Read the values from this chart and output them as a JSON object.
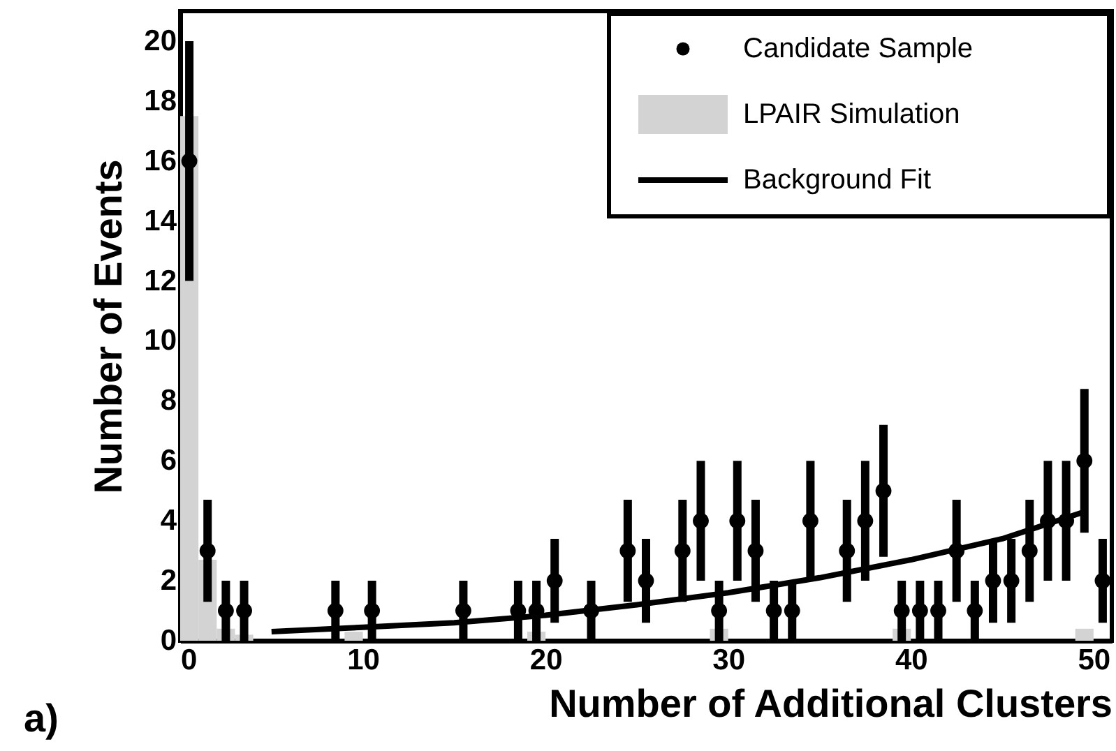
{
  "chart_data": {
    "type": "scatter",
    "xlabel": "Number of Additional Clusters",
    "ylabel": "Number of Events",
    "annotations": [
      "a)"
    ],
    "xlim": [
      0,
      51
    ],
    "xticks": [
      0,
      10,
      20,
      30,
      40,
      50
    ],
    "ylim": [
      0,
      21
    ],
    "yticks": [
      0,
      2,
      4,
      6,
      8,
      10,
      12,
      14,
      16,
      18,
      20
    ],
    "grid": false,
    "legend": "top right",
    "series": [
      {
        "name": "Candidate Sample",
        "marker": "circle",
        "color": "#000000",
        "x": [
          0.5,
          1.5,
          2.5,
          3.5,
          8.5,
          10.5,
          15.5,
          18.5,
          19.5,
          20.5,
          22.5,
          24.5,
          25.5,
          27.5,
          28.5,
          29.5,
          30.5,
          31.5,
          32.5,
          33.5,
          34.5,
          36.5,
          37.5,
          38.5,
          39.5,
          40.5,
          41.5,
          42.5,
          43.5,
          44.5,
          45.5,
          46.5,
          47.5,
          48.5,
          49.5,
          50.5
        ],
        "values": [
          16,
          3,
          1,
          1,
          1,
          1,
          1,
          1,
          1,
          2,
          1,
          3,
          2,
          3,
          4,
          1,
          4,
          3,
          1,
          1,
          4,
          3,
          4,
          5,
          1,
          1,
          1,
          3,
          1,
          2,
          2,
          3,
          4,
          4,
          6,
          2
        ],
        "errors": [
          4,
          1.7,
          1,
          1,
          1,
          1,
          1,
          1,
          1,
          1.4,
          1,
          1.7,
          1.4,
          1.7,
          2,
          1,
          2,
          1.7,
          1,
          1,
          2,
          1.7,
          2,
          2.2,
          1,
          1,
          1,
          1.7,
          1,
          1.4,
          1.4,
          1.7,
          2,
          2,
          2.4,
          1.4
        ]
      },
      {
        "name": "LPAIR Simulation",
        "type": "histogram",
        "color": "#d3d3d3",
        "bins": [
          0,
          1,
          2,
          3,
          4,
          5,
          6,
          7,
          8,
          9,
          10,
          11,
          12,
          13,
          14,
          15,
          16,
          17,
          18,
          19,
          20,
          21,
          22,
          23,
          24,
          25,
          26,
          27,
          28,
          29,
          30,
          31,
          32,
          33,
          34,
          35,
          36,
          37,
          38,
          39,
          40,
          41,
          42,
          43,
          44,
          45,
          46,
          47,
          48,
          49,
          50,
          51
        ],
        "values": [
          17.5,
          2.7,
          0.4,
          0.2,
          0,
          0,
          0,
          0,
          0,
          0.3,
          0,
          0,
          0,
          0,
          0,
          0,
          0,
          0,
          0,
          0.3,
          0,
          0,
          0,
          0,
          0,
          0,
          0,
          0,
          0,
          0.4,
          0,
          0,
          0,
          0,
          0,
          0,
          0,
          0,
          0,
          0.4,
          0,
          0,
          0,
          0,
          0,
          0,
          0,
          0,
          0,
          0.4,
          0
        ]
      },
      {
        "name": "Background Fit",
        "type": "line",
        "color": "#000000",
        "x": [
          5,
          10,
          15,
          20,
          25,
          30,
          35,
          40,
          45,
          49.5
        ],
        "values": [
          0.3,
          0.45,
          0.6,
          0.85,
          1.2,
          1.6,
          2.1,
          2.7,
          3.4,
          4.3
        ]
      }
    ]
  }
}
